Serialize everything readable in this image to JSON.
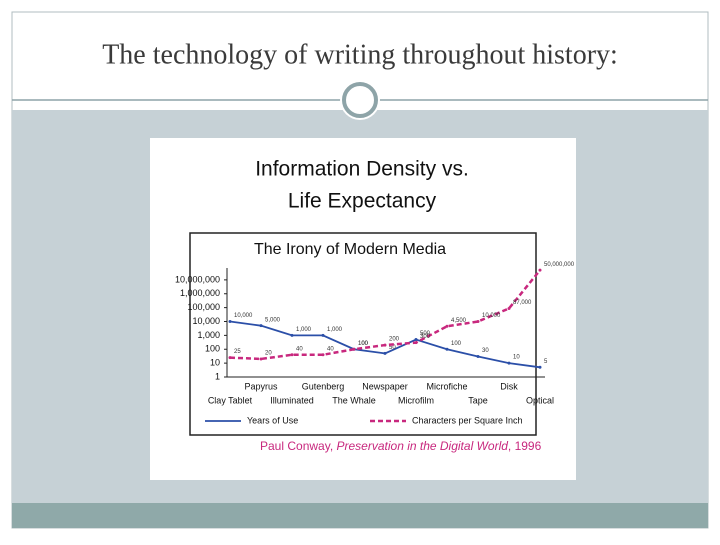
{
  "slide": {
    "title": "The technology of writing throughout history:"
  },
  "chart_data": {
    "type": "line",
    "title_lines": [
      "Information Density vs.",
      "Life Expectancy"
    ],
    "subtitle": "The Irony of Modern Media",
    "source": {
      "author": "Paul Conway,",
      "work": "Preservation in the Digital World",
      "year": ", 1996"
    },
    "categories": [
      "Clay Tablet",
      "Papyrus",
      "Illuminated",
      "Gutenberg",
      "The Whale",
      "Newspaper",
      "Microfilm",
      "Microfiche",
      "Tape",
      "Disk",
      "Optical"
    ],
    "log_scale": true,
    "ylim": [
      1,
      100000000
    ],
    "yticks": [
      1,
      10,
      100,
      {
        "value": 1000,
        "label": "1,000"
      },
      {
        "value": 10000,
        "label": "10,000"
      },
      {
        "value": 100000,
        "label": "100,000"
      },
      {
        "value": 1000000,
        "label": "1,000,000"
      },
      {
        "value": 10000000,
        "label": "10,000,000"
      }
    ],
    "series": [
      {
        "name": "Years of Use",
        "color": "#2b4fa8",
        "dashed": false,
        "values": [
          10000,
          5000,
          1000,
          1000,
          100,
          50,
          500,
          100,
          30,
          10,
          5
        ],
        "value_labels": [
          "10,000",
          "5,000",
          "1,000",
          "1,000",
          "100",
          "50",
          "500",
          "100",
          "30",
          "10",
          "5"
        ]
      },
      {
        "name": "Characters per Square Inch",
        "color": "#c8287e",
        "dashed": true,
        "values": [
          25,
          20,
          40,
          40,
          100,
          200,
          300,
          4500,
          10000,
          87000,
          50000000
        ],
        "value_labels": [
          "25",
          "20",
          "40",
          "40",
          "100",
          "200",
          "300",
          "4,500",
          "10,000",
          "87,000",
          "50,000,000"
        ]
      }
    ]
  }
}
